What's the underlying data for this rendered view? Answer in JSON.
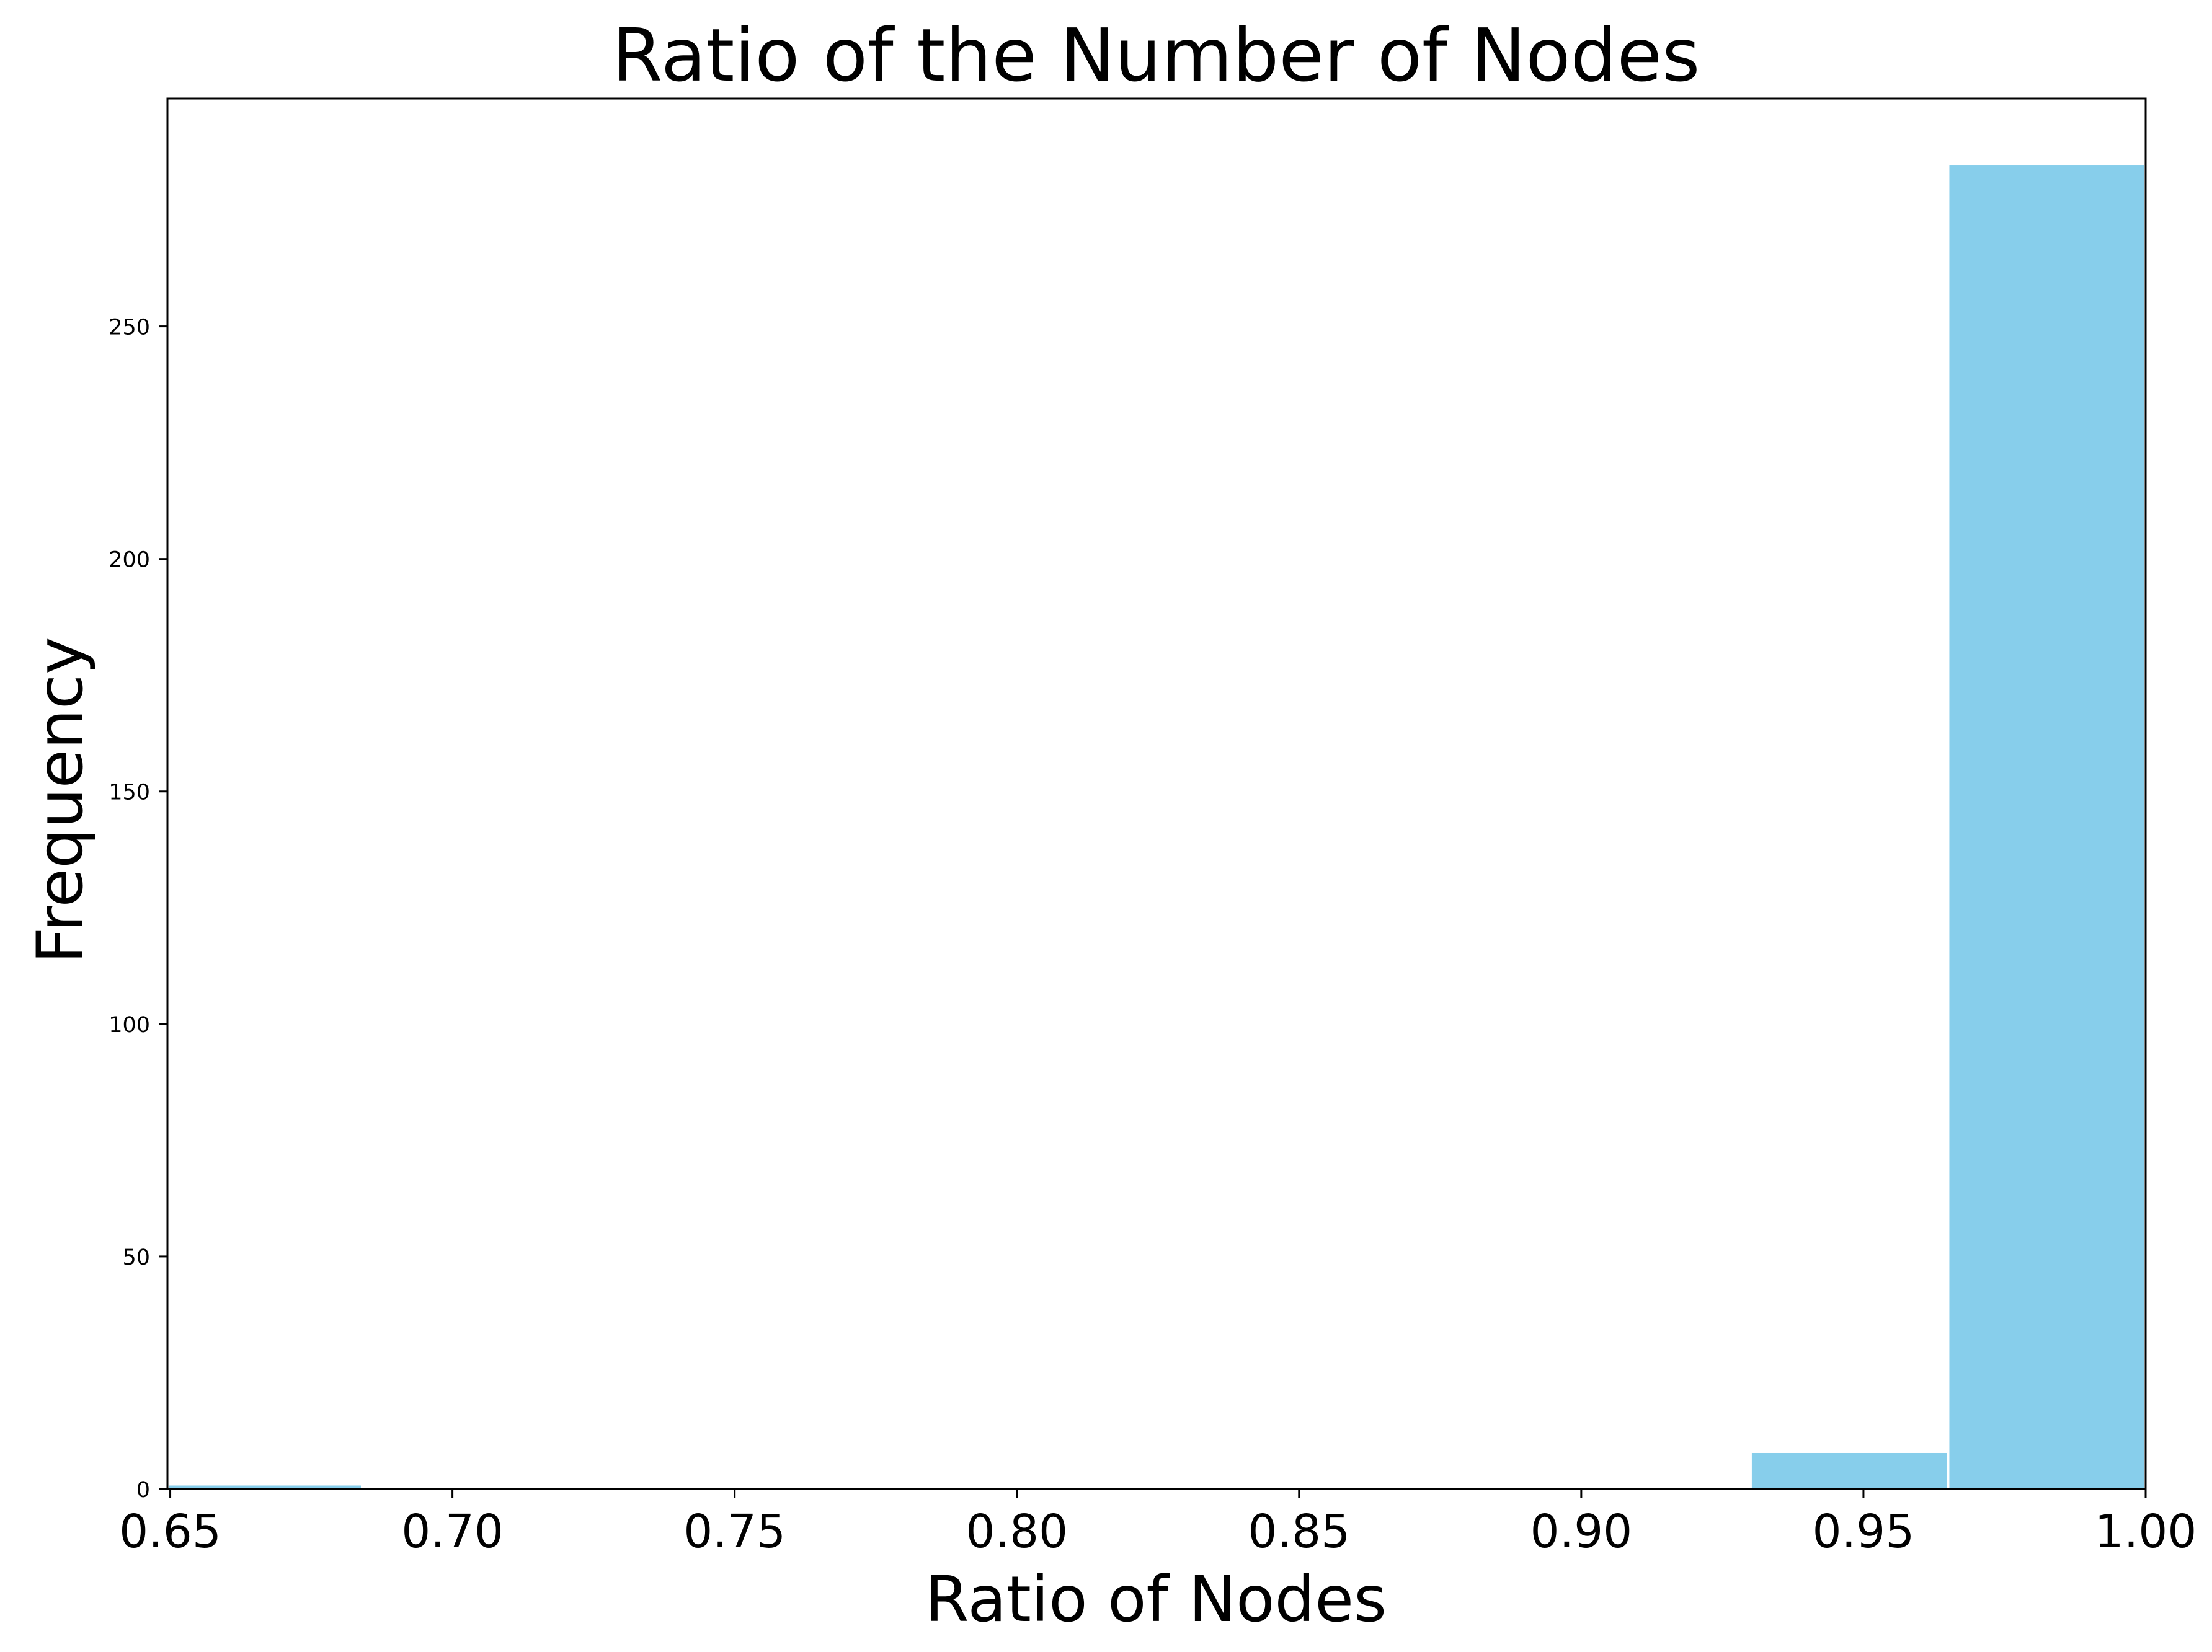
{
  "chart_data": {
    "type": "bar",
    "title": "Ratio of the Number of Nodes",
    "xlabel": "Ratio of Nodes",
    "ylabel": "Frequency",
    "xlim": [
      0.6495,
      1.0
    ],
    "ylim": [
      0,
      299
    ],
    "xticks": [
      "0.65",
      "0.70",
      "0.75",
      "0.80",
      "0.85",
      "0.90",
      "0.95",
      "1.00"
    ],
    "yticks": [
      "0",
      "50",
      "100",
      "150",
      "200",
      "250"
    ],
    "bins": [
      {
        "x0": 0.6495,
        "x1": 0.684,
        "value": 1
      },
      {
        "x0": 0.684,
        "x1": 0.7191,
        "value": 0
      },
      {
        "x0": 0.7191,
        "x1": 0.754,
        "value": 0
      },
      {
        "x0": 0.754,
        "x1": 0.789,
        "value": 0
      },
      {
        "x0": 0.789,
        "x1": 0.824,
        "value": 0
      },
      {
        "x0": 0.824,
        "x1": 0.86,
        "value": 0
      },
      {
        "x0": 0.86,
        "x1": 0.895,
        "value": 0
      },
      {
        "x0": 0.895,
        "x1": 0.93,
        "value": 0
      },
      {
        "x0": 0.93,
        "x1": 0.965,
        "value": 8
      },
      {
        "x0": 0.965,
        "x1": 1.0,
        "value": 285
      }
    ],
    "bar_color": "#87ceeb",
    "grid": false,
    "legend": "none"
  }
}
